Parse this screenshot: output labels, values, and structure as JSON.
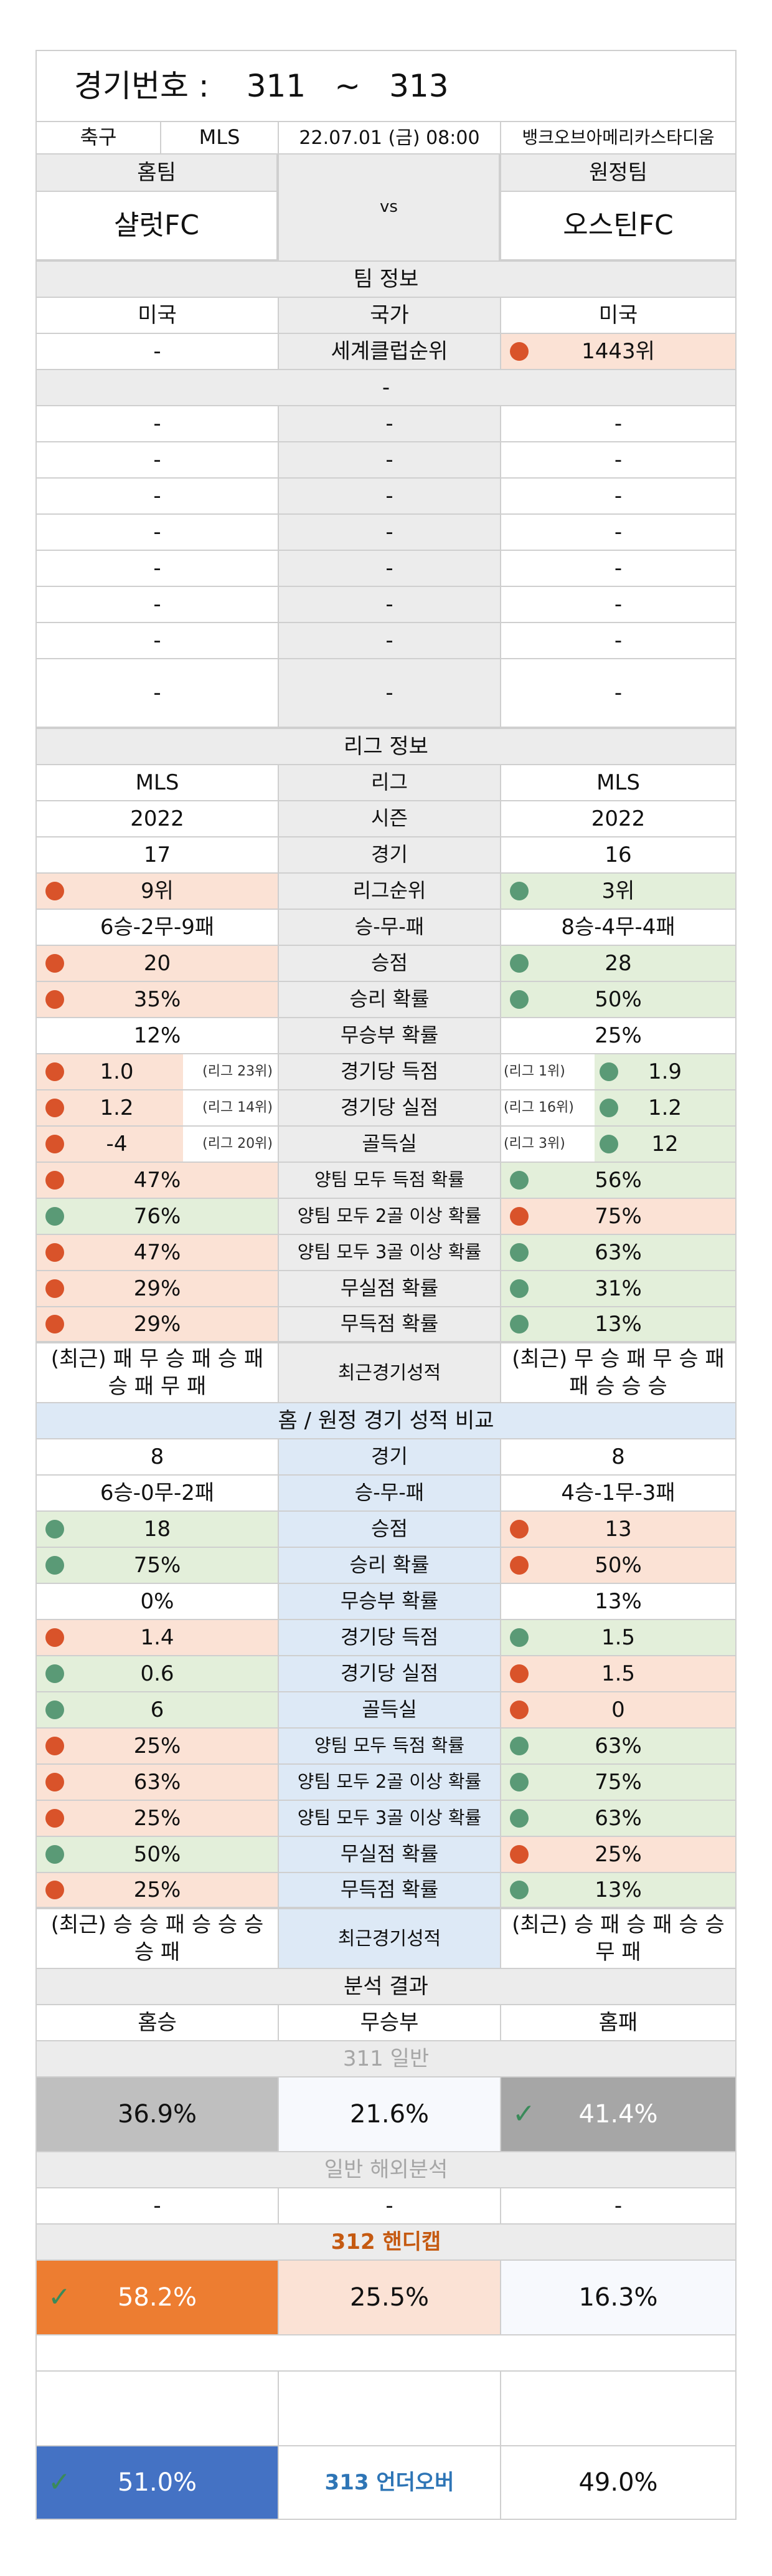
{
  "header": {
    "label": "경기번호 :",
    "from": "311",
    "tilde": "~",
    "to": "313"
  },
  "match": {
    "sport": "축구",
    "league": "MLS",
    "datetime": "22.07.01 (금) 08:00",
    "venue": "뱅크오브아메리카스타디움"
  },
  "teams": {
    "home_label": "홈팀",
    "away_label": "원정팀",
    "home": "샬럿FC",
    "away": "오스틴FC",
    "vs": "vs"
  },
  "team_info": {
    "title": "팀 정보",
    "country": [
      "미국",
      "국가",
      "미국"
    ],
    "world_rank": [
      "-",
      "세계클럽순위",
      "1443위"
    ],
    "blank": "-",
    "dash_rows": [
      [
        "-",
        "-",
        "-"
      ],
      [
        "-",
        "-",
        "-"
      ],
      [
        "-",
        "-",
        "-"
      ],
      [
        "-",
        "-",
        "-"
      ],
      [
        "-",
        "-",
        "-"
      ],
      [
        "-",
        "-",
        "-"
      ],
      [
        "-",
        "-",
        "-"
      ],
      [
        "-",
        "-",
        "-"
      ]
    ]
  },
  "league_info": {
    "title": "리그 정보",
    "rows": [
      [
        "MLS",
        "리그",
        "MLS"
      ],
      [
        "2022",
        "시즌",
        "2022"
      ],
      [
        "17",
        "경기",
        "16"
      ],
      [
        "9위",
        "리그순위",
        "3위"
      ],
      [
        "6승-2무-9패",
        "승-무-패",
        "8승-4무-4패"
      ],
      [
        "20",
        "승점",
        "28"
      ],
      [
        "35%",
        "승리 확률",
        "50%"
      ],
      [
        "12%",
        "무승부 확률",
        "25%"
      ],
      [
        "1.0",
        "경기당 득점",
        "1.9"
      ],
      [
        "1.2",
        "경기당 실점",
        "1.2"
      ],
      [
        "-4",
        "골득실",
        "12"
      ],
      [
        "47%",
        "양팀 모두 득점 확률",
        "56%"
      ],
      [
        "76%",
        "양팀 모두 2골 이상 확률",
        "75%"
      ],
      [
        "47%",
        "양팀 모두 3골 이상 확률",
        "63%"
      ],
      [
        "29%",
        "무실점 확률",
        "31%"
      ],
      [
        "29%",
        "무득점 확률",
        "13%"
      ]
    ],
    "ranks": {
      "home_goals": "(리그 23위)",
      "away_goals": "(리그 1위)",
      "home_conceded": "(리그 14위)",
      "away_conceded": "(리그 16위)",
      "home_diff": "(리그 20위)",
      "away_diff": "(리그 3위)"
    },
    "recent": [
      "(최근) 패 무 승 패 승 패 승 패 무 패",
      "최근경기성적",
      "(최근) 무 승 패 무 승 패 패 승 승 승"
    ]
  },
  "home_away": {
    "title": "홈 / 원정 경기 성적 비교",
    "rows": [
      [
        "8",
        "경기",
        "8"
      ],
      [
        "6승-0무-2패",
        "승-무-패",
        "4승-1무-3패"
      ],
      [
        "18",
        "승점",
        "13"
      ],
      [
        "75%",
        "승리 확률",
        "50%"
      ],
      [
        "0%",
        "무승부 확률",
        "13%"
      ],
      [
        "1.4",
        "경기당 득점",
        "1.5"
      ],
      [
        "0.6",
        "경기당 실점",
        "1.5"
      ],
      [
        "6",
        "골득실",
        "0"
      ],
      [
        "25%",
        "양팀 모두 득점 확률",
        "63%"
      ],
      [
        "63%",
        "양팀 모두 2골 이상 확률",
        "75%"
      ],
      [
        "25%",
        "양팀 모두 3골 이상 확률",
        "63%"
      ],
      [
        "50%",
        "무실점 확률",
        "25%"
      ],
      [
        "25%",
        "무득점 확률",
        "13%"
      ]
    ],
    "recent": [
      "(최근) 승 승 패 승 승 승 승 패",
      "최근경기성적",
      "(최근) 승 패 승 패 승 승 무 패"
    ]
  },
  "analysis": {
    "title": "분석 결과",
    "cols": [
      "홈승",
      "무승부",
      "홈패"
    ],
    "general_title": "311 일반",
    "general": [
      "36.9%",
      "21.6%",
      "41.4%"
    ],
    "overseas_title": "일반 해외분석",
    "overseas": [
      "-",
      "-",
      "-"
    ],
    "handicap_title": "312 핸디캡",
    "handicap": [
      "58.2%",
      "25.5%",
      "16.3%"
    ],
    "underover_label": "313 언더오버",
    "underover": [
      "51.0%",
      "49.0%"
    ]
  },
  "colors": {
    "red_dot": "#d9532a",
    "green_dot": "#5a9a76",
    "orange": "#ed7d31",
    "blue": "#4472c4",
    "gray": "#a6a6a6"
  }
}
